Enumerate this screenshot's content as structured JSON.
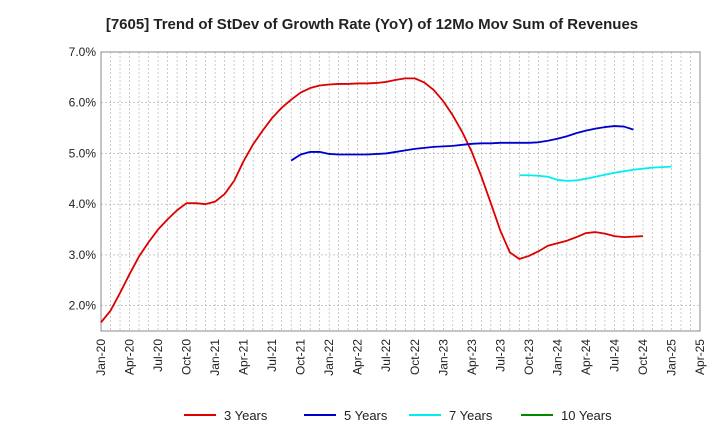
{
  "chart_data": {
    "type": "line",
    "title": "[7605]  Trend of StDev of Growth Rate (YoY) of 12Mo Mov Sum of Revenues",
    "xlabel": "",
    "ylabel": "",
    "ylim": [
      1.5,
      7.0
    ],
    "yticks": [
      2.0,
      3.0,
      4.0,
      5.0,
      6.0,
      7.0
    ],
    "ytick_labels": [
      "2.0%",
      "3.0%",
      "4.0%",
      "5.0%",
      "6.0%",
      "7.0%"
    ],
    "x_start": "2020-01",
    "x_end": "2025-04",
    "xtick_labels": [
      "Jan-20",
      "Apr-20",
      "Jul-20",
      "Oct-20",
      "Jan-21",
      "Apr-21",
      "Jul-21",
      "Oct-21",
      "Jan-22",
      "Apr-22",
      "Jul-22",
      "Oct-22",
      "Jan-23",
      "Apr-23",
      "Jul-23",
      "Oct-23",
      "Jan-24",
      "Apr-24",
      "Jul-24",
      "Oct-24",
      "Jan-25",
      "Apr-25"
    ],
    "grid": true,
    "legend_position": "bottom",
    "series": [
      {
        "name": "3 Years",
        "color": "#dd0000",
        "start": "2020-01",
        "values": [
          1.67,
          1.9,
          2.25,
          2.62,
          2.97,
          3.25,
          3.5,
          3.7,
          3.88,
          4.02,
          4.02,
          4.0,
          4.05,
          4.2,
          4.46,
          4.85,
          5.18,
          5.45,
          5.7,
          5.9,
          6.06,
          6.2,
          6.29,
          6.34,
          6.36,
          6.37,
          6.37,
          6.38,
          6.38,
          6.39,
          6.41,
          6.45,
          6.48,
          6.48,
          6.4,
          6.25,
          6.03,
          5.75,
          5.42,
          5.03,
          4.55,
          4.02,
          3.48,
          3.05,
          2.92,
          2.98,
          3.07,
          3.18,
          3.23,
          3.28,
          3.35,
          3.43,
          3.45,
          3.42,
          3.37,
          3.35,
          3.36,
          3.37
        ]
      },
      {
        "name": "5 Years",
        "color": "#0000cc",
        "start": "2021-09",
        "values": [
          4.86,
          4.98,
          5.03,
          5.03,
          4.99,
          4.98,
          4.98,
          4.98,
          4.98,
          4.99,
          5.0,
          5.03,
          5.06,
          5.09,
          5.11,
          5.13,
          5.14,
          5.15,
          5.17,
          5.19,
          5.2,
          5.2,
          5.21,
          5.21,
          5.21,
          5.21,
          5.22,
          5.25,
          5.29,
          5.34,
          5.4,
          5.45,
          5.49,
          5.52,
          5.54,
          5.53,
          5.47
        ]
      },
      {
        "name": "7 Years",
        "color": "#00eeee",
        "start": "2023-09",
        "values": [
          4.57,
          4.57,
          4.56,
          4.54,
          4.48,
          4.46,
          4.47,
          4.5,
          4.54,
          4.58,
          4.62,
          4.65,
          4.68,
          4.7,
          4.72,
          4.73,
          4.74
        ]
      },
      {
        "name": "10 Years",
        "color": "#008800",
        "start": "2025-04",
        "values": []
      }
    ]
  }
}
